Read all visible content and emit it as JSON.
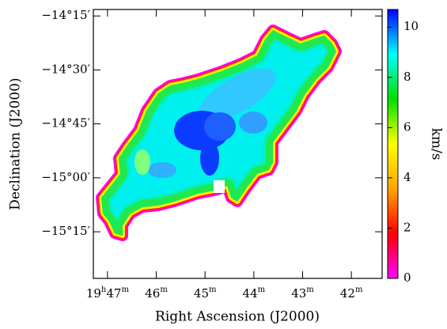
{
  "chart_data": {
    "type": "image",
    "x_label": "Right Ascension (J2000)",
    "y_label": "Declination (J2000)",
    "xlim": [
      47.29,
      41.37
    ],
    "xticks": [
      {
        "value": 47,
        "label": "19h47m"
      },
      {
        "value": 46,
        "label": "46m"
      },
      {
        "value": 45,
        "label": "45m"
      },
      {
        "value": 44,
        "label": "44m"
      },
      {
        "value": 43,
        "label": "43m"
      },
      {
        "value": 42,
        "label": "42m"
      }
    ],
    "ylim": [
      -15.466,
      -14.22
    ],
    "yticks": [
      {
        "value": -14.25,
        "label": "−14°15′"
      },
      {
        "value": -14.5,
        "label": "−14°30′"
      },
      {
        "value": -14.75,
        "label": "−14°45′"
      },
      {
        "value": -15,
        "label": "−15°00′"
      },
      {
        "value": -15.25,
        "label": "−15°15′"
      }
    ],
    "colorbar": {
      "label": "km/s",
      "clim": [
        0,
        10.7
      ],
      "ticks": [
        0,
        2,
        4,
        6,
        8,
        10
      ],
      "colors": [
        "#ff00ff",
        "#ff0000",
        "#ffa500",
        "#ffff00",
        "#00e000",
        "#00ffff",
        "#0000ff"
      ]
    }
  }
}
